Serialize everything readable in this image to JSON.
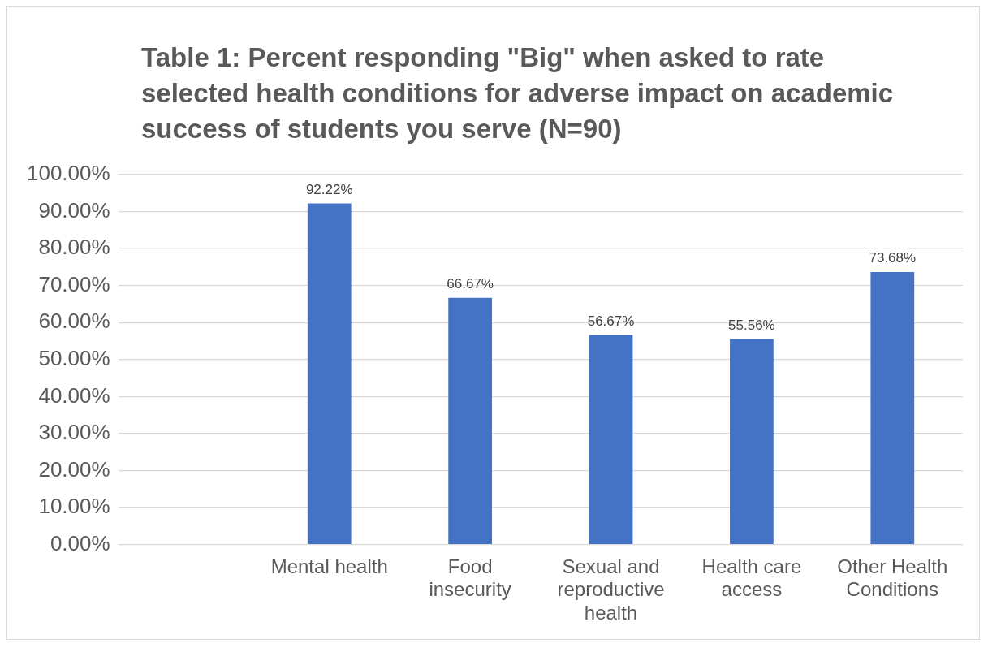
{
  "chart_data": {
    "type": "bar",
    "title": "Table 1: Percent responding \"Big\" when asked to rate selected health conditions for adverse impact on academic success of students you serve (N=90)",
    "categories": [
      null,
      "Mental health",
      "Food insecurity",
      "Sexual and reproductive health",
      "Health care access",
      "Other Health Conditions"
    ],
    "values": [
      null,
      92.22,
      66.67,
      56.67,
      55.56,
      73.68
    ],
    "value_labels": [
      null,
      "92.22%",
      "66.67%",
      "56.67%",
      "55.56%",
      "73.68%"
    ],
    "color": "#4472c4",
    "ylim": [
      0,
      100
    ],
    "yticks": [
      {
        "value": 0,
        "label": "0.00%"
      },
      {
        "value": 10,
        "label": "10.00%"
      },
      {
        "value": 20,
        "label": "20.00%"
      },
      {
        "value": 30,
        "label": "30.00%"
      },
      {
        "value": 40,
        "label": "40.00%"
      },
      {
        "value": 50,
        "label": "50.00%"
      },
      {
        "value": 60,
        "label": "60.00%"
      },
      {
        "value": 70,
        "label": "70.00%"
      },
      {
        "value": 80,
        "label": "80.00%"
      },
      {
        "value": 90,
        "label": "90.00%"
      },
      {
        "value": 100,
        "label": "100.00%"
      }
    ],
    "grid": "y",
    "legend": false
  }
}
